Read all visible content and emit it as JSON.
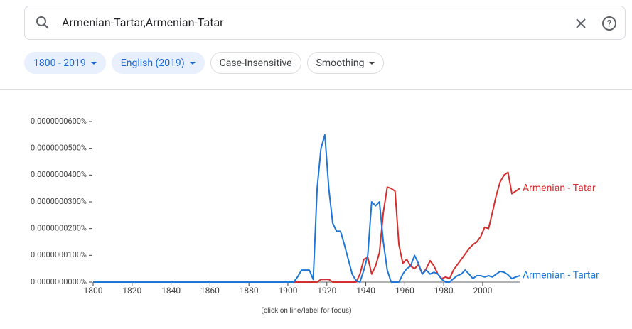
{
  "search": {
    "query": "Armenian-Tartar,Armenian-Tatar"
  },
  "filters": [
    "1800 - 2019",
    "English (2019)",
    "Case-Insensitive",
    "Smoothing"
  ],
  "footnote": "(click on line/label for focus)",
  "chart_data": {
    "type": "line",
    "x": [
      1800,
      1900,
      1903,
      1905,
      1907,
      1909,
      1911,
      1913,
      1915,
      1917,
      1919,
      1921,
      1923,
      1925,
      1927,
      1929,
      1931,
      1933,
      1935,
      1937,
      1939,
      1941,
      1943,
      1945,
      1947,
      1949,
      1951,
      1953,
      1955,
      1957,
      1959,
      1961,
      1963,
      1965,
      1967,
      1969,
      1971,
      1973,
      1975,
      1977,
      1979,
      1981,
      1983,
      1985,
      1987,
      1989,
      1991,
      1993,
      1995,
      1997,
      1999,
      2001,
      2003,
      2005,
      2007,
      2009,
      2011,
      2013,
      2015,
      2017,
      2019
    ],
    "series": [
      {
        "name": "Armenian - Tatar",
        "color": "#d32f2f",
        "values": [
          0,
          0,
          0,
          0,
          0,
          0,
          0,
          0,
          0,
          1e-09,
          1e-09,
          1e-09,
          0,
          0,
          0,
          0,
          0,
          0,
          0,
          3e-09,
          8.5e-09,
          9.3e-09,
          3e-09,
          6e-09,
          1.1e-08,
          2.6e-08,
          3.55e-08,
          3.5e-08,
          3.4e-08,
          1.4e-08,
          7e-09,
          8.5e-09,
          6e-09,
          5e-09,
          6.5e-09,
          3e-09,
          5e-09,
          8e-09,
          6e-09,
          3e-09,
          1.3e-09,
          1.9e-09,
          1.3e-09,
          4.5e-09,
          6.5e-09,
          8.5e-09,
          1.05e-08,
          1.25e-08,
          1.4e-08,
          1.5e-08,
          1.7e-08,
          2.05e-08,
          2e-08,
          2.6e-08,
          3.25e-08,
          3.75e-08,
          4e-08,
          4.1e-08,
          3.3e-08,
          3.4e-08,
          3.5e-08
        ]
      },
      {
        "name": "Armenian - Tartar",
        "color": "#1e76d6",
        "values": [
          0,
          0,
          0,
          2e-09,
          4.5e-09,
          4.5e-09,
          4.5e-09,
          1e-09,
          3.5e-08,
          5e-08,
          5.5e-08,
          3.5e-08,
          2.2e-08,
          1.9e-08,
          1.9e-08,
          1.4e-08,
          8.5e-09,
          3e-09,
          5e-10,
          0,
          4.5e-09,
          1e-08,
          3e-08,
          2.85e-08,
          3e-08,
          1.5e-08,
          4.5e-09,
          0,
          0,
          0,
          3e-09,
          5e-09,
          6e-09,
          1e-08,
          7e-09,
          3e-09,
          4.5e-09,
          3e-09,
          3.7e-09,
          3e-09,
          1e-09,
          0,
          0,
          1.3e-09,
          2.4e-09,
          3e-09,
          4.5e-09,
          3e-09,
          1.3e-09,
          2.4e-09,
          2.4e-09,
          1.9e-09,
          2.4e-09,
          1.9e-09,
          3e-09,
          4e-09,
          3.7e-09,
          2.7e-09,
          1.3e-09,
          1.9e-09,
          2.4e-09
        ]
      }
    ],
    "xlim": [
      1800,
      2019
    ],
    "xticks": [
      1800,
      1820,
      1840,
      1860,
      1880,
      1900,
      1920,
      1940,
      1960,
      1980,
      2000
    ],
    "ylim": [
      0,
      6e-08
    ],
    "yticks": [
      {
        "value": 0,
        "label": "0.0000000000%"
      },
      {
        "value": 1e-08,
        "label": "0.0000000100%"
      },
      {
        "value": 2e-08,
        "label": "0.0000000200%"
      },
      {
        "value": 3e-08,
        "label": "0.0000000300%"
      },
      {
        "value": 4e-08,
        "label": "0.0000000400%"
      },
      {
        "value": 5e-08,
        "label": "0.0000000500%"
      },
      {
        "value": 6e-08,
        "label": "0.0000000600%"
      }
    ]
  }
}
